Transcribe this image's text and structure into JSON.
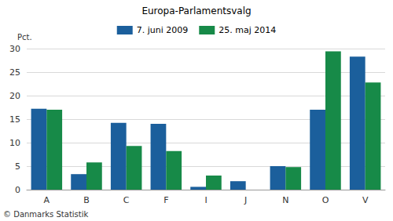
{
  "chart_data": {
    "type": "bar",
    "title": "Europa-Parlamentsvalg",
    "ylabel": "Pct.",
    "annotations": [
      "© Danmarks Statistik"
    ],
    "categories": [
      "A",
      "B",
      "C",
      "F",
      "I",
      "J",
      "N",
      "O",
      "V"
    ],
    "series": [
      {
        "name": "7. juni 2009",
        "color": "#1b5f9c",
        "values": [
          17.2,
          3.3,
          14.2,
          14.0,
          0.6,
          1.8,
          5.0,
          17.0,
          28.3
        ]
      },
      {
        "name": "25. maj 2014",
        "color": "#178a48",
        "values": [
          17.0,
          5.8,
          9.3,
          8.2,
          3.0,
          null,
          4.8,
          29.4,
          22.8
        ]
      }
    ],
    "ylim": [
      0,
      30
    ],
    "yticks": [
      0,
      5,
      10,
      15,
      20,
      25,
      30
    ],
    "grid": true,
    "legend": "top"
  }
}
